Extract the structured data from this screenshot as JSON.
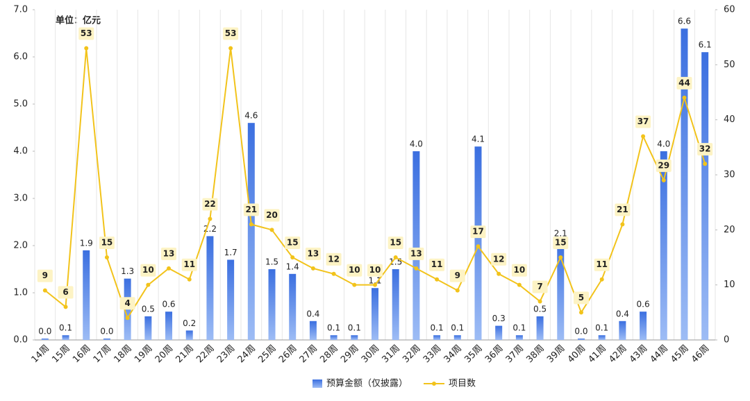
{
  "chart_data": {
    "type": "bar-line",
    "annotation": "单位：亿元",
    "categories": [
      "14周",
      "15周",
      "16周",
      "17周",
      "18周",
      "19周",
      "20周",
      "21周",
      "22周",
      "23周",
      "24周",
      "25周",
      "26周",
      "27周",
      "28周",
      "29周",
      "30周",
      "31周",
      "32周",
      "33周",
      "34周",
      "35周",
      "36周",
      "37周",
      "38周",
      "39周",
      "40周",
      "41周",
      "42周",
      "43周",
      "44周",
      "45周",
      "46周"
    ],
    "series": [
      {
        "name": "预算金额（仅披露）",
        "color": "#4a7fe0",
        "type": "bar",
        "values": [
          0.03,
          0.1,
          1.9,
          0.03,
          1.3,
          0.5,
          0.6,
          0.2,
          2.2,
          1.7,
          4.6,
          1.5,
          1.4,
          0.4,
          0.1,
          0.1,
          1.1,
          1.5,
          4.0,
          0.1,
          0.1,
          4.1,
          0.3,
          0.1,
          0.5,
          2.1,
          0.03,
          0.1,
          0.4,
          0.6,
          4.0,
          6.6,
          6.1
        ],
        "value_labels": [
          "0.0",
          "0.1",
          "1.9",
          "0.0",
          "1.3",
          "0.5",
          "0.6",
          "0.2",
          "2.2",
          "1.7",
          "4.6",
          "1.5",
          "1.4",
          "0.4",
          "0.1",
          "0.1",
          "1.1",
          "1.5",
          "4.0",
          "0.1",
          "0.1",
          "4.1",
          "0.3",
          "0.1",
          "0.5",
          "2.1",
          "0.0",
          "0.1",
          "0.4",
          "0.6",
          "4.0",
          "6.6",
          "6.1"
        ]
      },
      {
        "name": "项目数",
        "color": "#f2c31b",
        "type": "line",
        "axis": "y2",
        "values": [
          9,
          6,
          53,
          15,
          4,
          10,
          13,
          11,
          22,
          53,
          21,
          20,
          15,
          13,
          12,
          10,
          10,
          15,
          13,
          11,
          9,
          17,
          12,
          10,
          7,
          15,
          5,
          11,
          21,
          37,
          29,
          44,
          32
        ]
      }
    ],
    "ylim": [
      0,
      7
    ],
    "yticks": [
      {
        "value": 0,
        "label": "0.0"
      },
      {
        "value": 1,
        "label": "1.0"
      },
      {
        "value": 2,
        "label": "2.0"
      },
      {
        "value": 3,
        "label": "3.0"
      },
      {
        "value": 4,
        "label": "4.0"
      },
      {
        "value": 5,
        "label": "5.0"
      },
      {
        "value": 6,
        "label": "6.0"
      },
      {
        "value": 7,
        "label": "7.0"
      }
    ],
    "y2lim": [
      0,
      60
    ],
    "y2ticks": [
      0,
      10,
      20,
      30,
      40,
      50,
      60
    ],
    "legend": "bottom"
  }
}
